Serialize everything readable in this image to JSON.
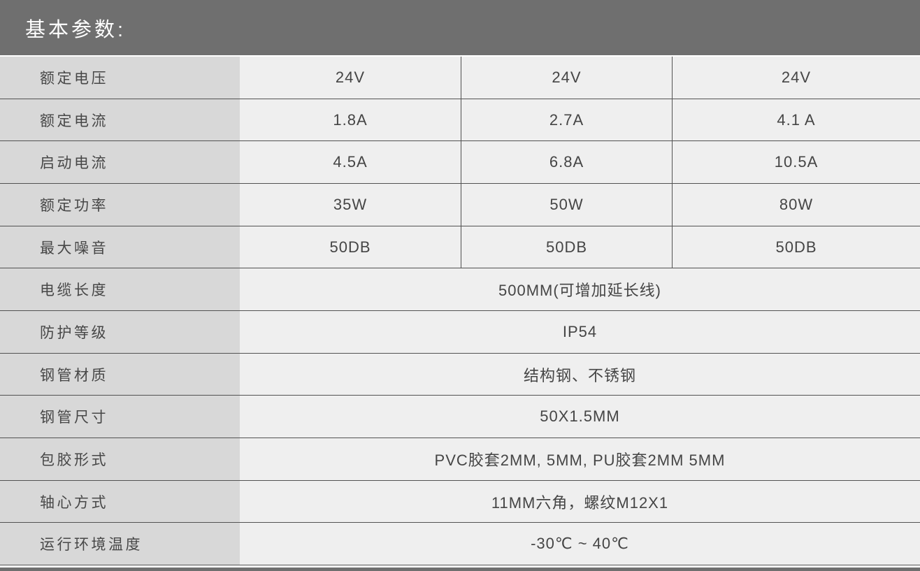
{
  "page": {
    "title": "基本参数:"
  },
  "colors": {
    "header_bg": "#6f6f6f",
    "label_column_bg": "#d8d8d8",
    "value_cell_bg": "#efefef",
    "grid_line": "#525252",
    "title_text": "#ffffff",
    "cell_text": "#454545",
    "footer_bar_bg": "#6f6f6f"
  },
  "table": {
    "rows": [
      {
        "label": "额定电压",
        "values": [
          "24V",
          "24V",
          "24V"
        ]
      },
      {
        "label": "额定电流",
        "values": [
          "1.8A",
          "2.7A",
          "4.1 A"
        ]
      },
      {
        "label": "启动电流",
        "values": [
          "4.5A",
          "6.8A",
          "10.5A"
        ]
      },
      {
        "label": "额定功率",
        "values": [
          "35W",
          "50W",
          "80W"
        ]
      },
      {
        "label": "最大噪音",
        "values": [
          "50DB",
          "50DB",
          "50DB"
        ]
      },
      {
        "label": "电缆长度",
        "values": [
          "500MM(可增加延长线)"
        ]
      },
      {
        "label": "防护等级",
        "values": [
          "IP54"
        ]
      },
      {
        "label": "钢管材质",
        "values": [
          "结构钢、不锈钢"
        ]
      },
      {
        "label": "钢管尺寸",
        "values": [
          "50X1.5MM"
        ]
      },
      {
        "label": "包胶形式",
        "values": [
          "PVC胶套2MM, 5MM, PU胶套2MM 5MM"
        ]
      },
      {
        "label": "轴心方式",
        "values": [
          "11MM六角，螺纹M12X1"
        ]
      },
      {
        "label": "运行环境温度",
        "values": [
          "-30℃ ~ 40℃"
        ]
      }
    ]
  }
}
